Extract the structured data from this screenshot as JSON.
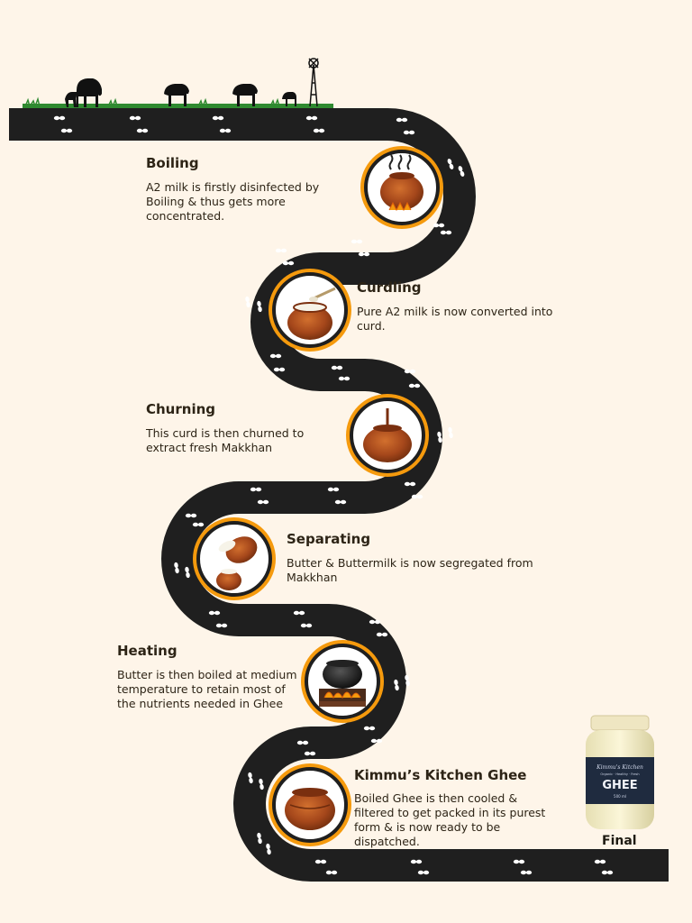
{
  "steps": [
    {
      "title": "Boiling",
      "description": "A2 milk is firstly disinfected by Boiling & thus gets more concentrated.",
      "icon": "boiling-pot-icon"
    },
    {
      "title": "Curdling",
      "description": "Pure A2 milk is now converted into curd.",
      "icon": "curd-pot-icon"
    },
    {
      "title": "Churning",
      "description": "This curd is then churned to extract fresh Makkhan",
      "icon": "churning-pot-icon"
    },
    {
      "title": "Separating",
      "description": "Butter & Buttermilk is now segregated from Makkhan",
      "icon": "separating-pots-icon"
    },
    {
      "title": "Heating",
      "description": "Butter is then boiled at medium temperature to retain most of the nutrients needed in Ghee",
      "icon": "heating-cauldron-icon"
    },
    {
      "title": "Kimmu’s Kitchen Ghee",
      "description": "Boiled Ghee is then cooled & filtered to get packed in its purest form & is now ready to be dispatched.",
      "icon": "ghee-pot-icon"
    }
  ],
  "final": {
    "label": "Final",
    "jar_brand": "Kimmu's Kitchen",
    "jar_tagline": "Organic · Healthy · Fresh",
    "jar_title": "GHEE",
    "jar_size": "500 ml"
  },
  "colors": {
    "background": "#fef5e9",
    "road": "#1f1f1f",
    "accent": "#f59a0d",
    "clay": "#a5471b",
    "text": "#2d2416"
  }
}
